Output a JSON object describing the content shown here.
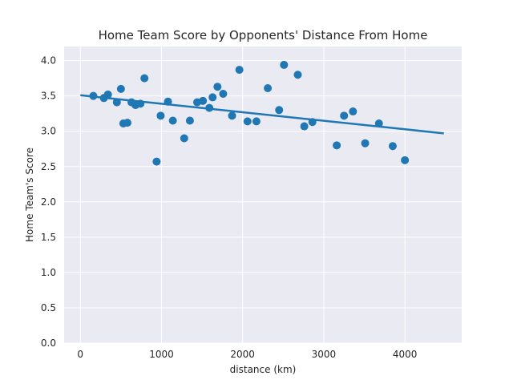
{
  "chart_data": {
    "type": "scatter",
    "title": "Home Team Score by Opponents' Distance From Home",
    "xlabel": "distance (km)",
    "ylabel": "Home Team's Score",
    "xlim": [
      -200,
      4700
    ],
    "ylim": [
      0.0,
      4.2
    ],
    "x_ticks": [
      0,
      1000,
      2000,
      3000,
      4000
    ],
    "x_tick_labels": [
      "0",
      "1000",
      "2000",
      "3000",
      "4000"
    ],
    "y_ticks": [
      0.0,
      0.5,
      1.0,
      1.5,
      2.0,
      2.5,
      3.0,
      3.5,
      4.0
    ],
    "y_tick_labels": [
      "0.0",
      "0.5",
      "1.0",
      "1.5",
      "2.0",
      "2.5",
      "3.0",
      "3.5",
      "4.0"
    ],
    "grid": true,
    "style": "seaborn-darkgrid",
    "background_color": "#EAEAF2",
    "grid_color": "#FFFFFF",
    "marker_color": "#1F77B4",
    "line_color": "#1F77B4",
    "series": [
      {
        "kind": "scatter",
        "points": [
          {
            "x": 160,
            "y": 3.5
          },
          {
            "x": 290,
            "y": 3.47
          },
          {
            "x": 340,
            "y": 3.52
          },
          {
            "x": 450,
            "y": 3.41
          },
          {
            "x": 500,
            "y": 3.6
          },
          {
            "x": 530,
            "y": 3.11
          },
          {
            "x": 580,
            "y": 3.12
          },
          {
            "x": 630,
            "y": 3.41
          },
          {
            "x": 680,
            "y": 3.37
          },
          {
            "x": 740,
            "y": 3.39
          },
          {
            "x": 790,
            "y": 3.75
          },
          {
            "x": 940,
            "y": 2.57
          },
          {
            "x": 990,
            "y": 3.22
          },
          {
            "x": 1080,
            "y": 3.42
          },
          {
            "x": 1140,
            "y": 3.15
          },
          {
            "x": 1280,
            "y": 2.9
          },
          {
            "x": 1350,
            "y": 3.15
          },
          {
            "x": 1440,
            "y": 3.41
          },
          {
            "x": 1510,
            "y": 3.43
          },
          {
            "x": 1590,
            "y": 3.33
          },
          {
            "x": 1630,
            "y": 3.48
          },
          {
            "x": 1690,
            "y": 3.63
          },
          {
            "x": 1760,
            "y": 3.53
          },
          {
            "x": 1870,
            "y": 3.22
          },
          {
            "x": 1960,
            "y": 3.87
          },
          {
            "x": 2060,
            "y": 3.14
          },
          {
            "x": 2170,
            "y": 3.14
          },
          {
            "x": 2310,
            "y": 3.61
          },
          {
            "x": 2450,
            "y": 3.3
          },
          {
            "x": 2510,
            "y": 3.94
          },
          {
            "x": 2680,
            "y": 3.8
          },
          {
            "x": 2760,
            "y": 3.07
          },
          {
            "x": 2860,
            "y": 3.13
          },
          {
            "x": 3160,
            "y": 2.8
          },
          {
            "x": 3250,
            "y": 3.22
          },
          {
            "x": 3360,
            "y": 3.28
          },
          {
            "x": 3510,
            "y": 2.83
          },
          {
            "x": 3680,
            "y": 3.11
          },
          {
            "x": 3850,
            "y": 2.79
          },
          {
            "x": 4000,
            "y": 2.59
          }
        ]
      },
      {
        "kind": "regression_line",
        "x": [
          0,
          4480
        ],
        "y": [
          3.51,
          2.97
        ]
      }
    ]
  }
}
